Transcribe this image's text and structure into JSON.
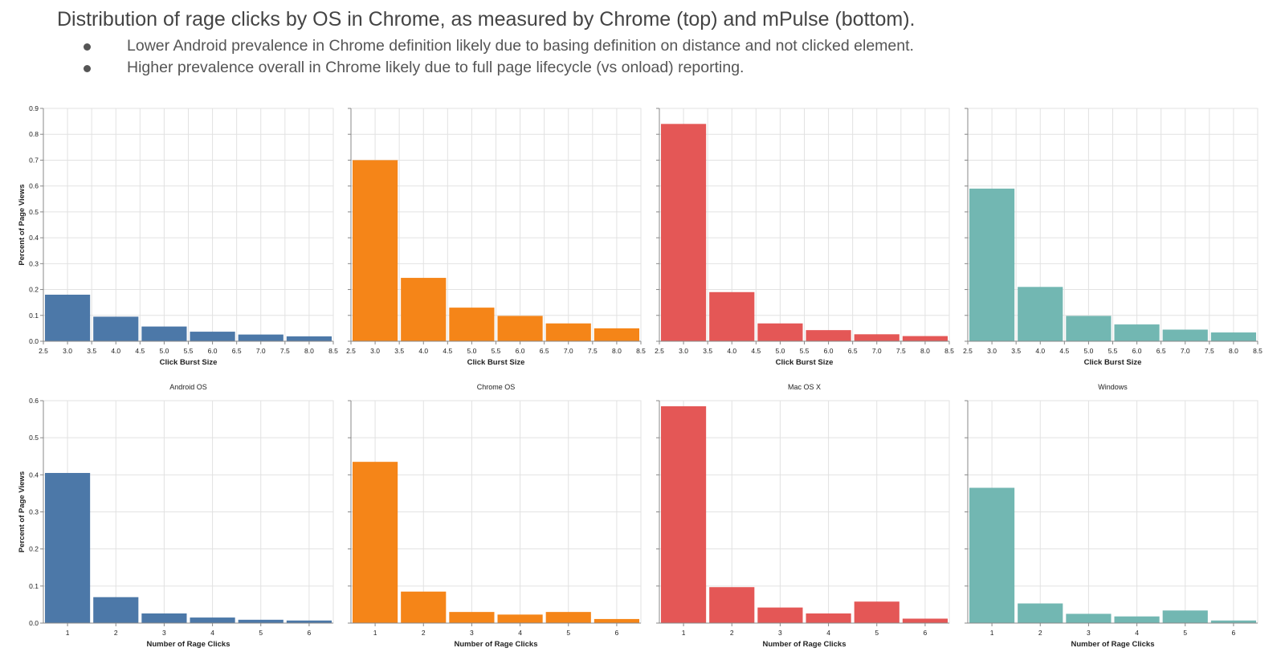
{
  "header": {
    "title": "Distribution of rage clicks by OS in Chrome, as measured by Chrome (top) and mPulse (bottom).",
    "bullets": [
      "Lower Android prevalence in Chrome definition likely due to basing definition on distance and not clicked element.",
      "Higher prevalence overall in Chrome likely due to full page lifecycle (vs onload) reporting."
    ]
  },
  "colors": {
    "Android OS": "#4c78a8",
    "Chrome OS": "#f58518",
    "Mac OS X": "#e45756",
    "Windows": "#72b7b2"
  },
  "chart_data": [
    {
      "type": "bar",
      "row": "top",
      "xlabel": "Click Burst Size",
      "ylabel": "Percent of Page Views",
      "xlim": [
        2.5,
        8.5
      ],
      "ylim": [
        0,
        0.9
      ],
      "x_ticks": [
        "2.5",
        "3.0",
        "3.5",
        "4.0",
        "4.5",
        "5.0",
        "5.5",
        "6.0",
        "6.5",
        "7.0",
        "7.5",
        "8.0",
        "8.5"
      ],
      "y_ticks": [
        "0.0",
        "0.1",
        "0.2",
        "0.3",
        "0.4",
        "0.5",
        "0.6",
        "0.7",
        "0.8",
        "0.9"
      ],
      "bins": [
        [
          2.5,
          3.5
        ],
        [
          3.5,
          4.5
        ],
        [
          4.5,
          5.5
        ],
        [
          5.5,
          6.5
        ],
        [
          6.5,
          7.5
        ],
        [
          7.5,
          8.5
        ]
      ],
      "facets": [
        {
          "os": "Android OS",
          "values": [
            0.18,
            0.095,
            0.057,
            0.037,
            0.026,
            0.019
          ]
        },
        {
          "os": "Chrome OS",
          "values": [
            0.7,
            0.245,
            0.13,
            0.098,
            0.069,
            0.05
          ]
        },
        {
          "os": "Mac OS X",
          "values": [
            0.84,
            0.19,
            0.069,
            0.043,
            0.027,
            0.02
          ]
        },
        {
          "os": "Windows",
          "values": [
            0.59,
            0.21,
            0.098,
            0.065,
            0.045,
            0.034
          ]
        }
      ]
    },
    {
      "type": "bar",
      "row": "bottom",
      "xlabel": "Number of Rage Clicks",
      "ylabel": "Percent of Page Views",
      "ylim": [
        0,
        0.6
      ],
      "categories": [
        "1",
        "2",
        "3",
        "4",
        "5",
        "6"
      ],
      "y_ticks": [
        "0.0",
        "0.1",
        "0.2",
        "0.3",
        "0.4",
        "0.5",
        "0.6"
      ],
      "facets": [
        {
          "os": "Android OS",
          "title": "Android OS",
          "values": [
            0.405,
            0.07,
            0.026,
            0.015,
            0.009,
            0.007
          ]
        },
        {
          "os": "Chrome OS",
          "title": "Chrome OS",
          "values": [
            0.435,
            0.085,
            0.03,
            0.023,
            0.03,
            0.011
          ]
        },
        {
          "os": "Mac OS X",
          "title": "Mac OS X",
          "values": [
            0.585,
            0.097,
            0.042,
            0.026,
            0.058,
            0.012
          ]
        },
        {
          "os": "Windows",
          "title": "Windows",
          "values": [
            0.365,
            0.053,
            0.025,
            0.018,
            0.034,
            0.007
          ]
        }
      ]
    }
  ]
}
